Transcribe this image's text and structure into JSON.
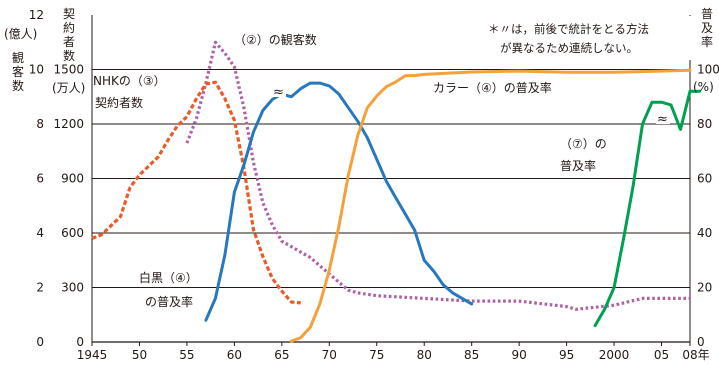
{
  "chart_data": {
    "type": "line",
    "axes": {
      "left_outer": {
        "label_lines": [
          "(億人)",
          "観",
          "客",
          "数"
        ],
        "ticks": [
          0,
          2,
          4,
          6,
          8,
          10,
          12
        ],
        "ylim": [
          0,
          12
        ]
      },
      "left_inner": {
        "label_lines": [
          "契",
          "約",
          "者",
          "数",
          "(万人)"
        ],
        "ticks": [
          0,
          300,
          600,
          900,
          1200,
          1500
        ],
        "ylim": [
          0,
          1800
        ]
      },
      "right": {
        "label_lines": [
          "普",
          "及",
          "率"
        ],
        "unit": "(%)",
        "ticks": [
          0,
          20,
          40,
          60,
          80,
          100
        ],
        "ylim": [
          0,
          120
        ]
      },
      "x": {
        "tick_labels": [
          "1945",
          "50",
          "55",
          "60",
          "65",
          "70",
          "75",
          "80",
          "85",
          "90",
          "95",
          "2000",
          "05",
          "08年"
        ],
        "tick_years": [
          1945,
          1950,
          1955,
          1960,
          1965,
          1970,
          1975,
          1980,
          1985,
          1990,
          1995,
          2000,
          2005,
          2008
        ],
        "xlim": [
          1945,
          2008
        ]
      }
    },
    "grid": true,
    "note": [
      "＊〃は，前後で統計をとる方法",
      "が異なるため連続しない。"
    ],
    "break_mark": "≈",
    "series": [
      {
        "label_lines": [
          "（②）の観客数"
        ],
        "color": "#b05fa6",
        "style": "dotted",
        "axis": "left_outer",
        "points": [
          [
            1955,
            7.3
          ],
          [
            1956,
            8.2
          ],
          [
            1957,
            9.5
          ],
          [
            1958,
            11.0
          ],
          [
            1959,
            10.6
          ],
          [
            1960,
            10.1
          ],
          [
            1961,
            8.6
          ],
          [
            1962,
            6.6
          ],
          [
            1963,
            5.1
          ],
          [
            1964,
            4.3
          ],
          [
            1965,
            3.7
          ],
          [
            1966,
            3.5
          ],
          [
            1967,
            3.3
          ],
          [
            1968,
            3.1
          ],
          [
            1969,
            2.8
          ],
          [
            1970,
            2.5
          ],
          [
            1971,
            2.2
          ],
          [
            1972,
            1.9
          ],
          [
            1973,
            1.8
          ],
          [
            1975,
            1.7
          ],
          [
            1980,
            1.6
          ],
          [
            1985,
            1.5
          ],
          [
            1990,
            1.5
          ],
          [
            1995,
            1.3
          ],
          [
            1996,
            1.2
          ],
          [
            2000,
            1.35
          ],
          [
            2003,
            1.6
          ],
          [
            2005,
            1.6
          ],
          [
            2008,
            1.6
          ]
        ]
      },
      {
        "label_lines": [
          "NHKの（③）",
          "契約者数"
        ],
        "color": "#ea5b2a",
        "style": "dashed",
        "axis": "left_inner",
        "points": [
          [
            1945,
            570
          ],
          [
            1946,
            590
          ],
          [
            1948,
            690
          ],
          [
            1949,
            850
          ],
          [
            1950,
            920
          ],
          [
            1951,
            970
          ],
          [
            1952,
            1020
          ],
          [
            1953,
            1110
          ],
          [
            1954,
            1190
          ],
          [
            1955,
            1240
          ],
          [
            1956,
            1340
          ],
          [
            1957,
            1420
          ],
          [
            1958,
            1430
          ],
          [
            1959,
            1340
          ],
          [
            1960,
            1220
          ],
          [
            1961,
            960
          ],
          [
            1962,
            620
          ],
          [
            1963,
            470
          ],
          [
            1964,
            350
          ],
          [
            1965,
            280
          ],
          [
            1966,
            220
          ],
          [
            1967,
            215
          ]
        ]
      },
      {
        "label_lines": [
          "白黒（④）",
          "の普及率"
        ],
        "color": "#2878be",
        "style": "solid",
        "axis": "right",
        "points": [
          [
            1957,
            8
          ],
          [
            1958,
            16
          ],
          [
            1959,
            32
          ],
          [
            1960,
            55
          ],
          [
            1961,
            65
          ],
          [
            1962,
            77
          ],
          [
            1963,
            85
          ],
          [
            1964,
            89
          ],
          [
            1965,
            91
          ],
          [
            1966,
            90
          ],
          [
            1967,
            93
          ],
          [
            1968,
            95
          ],
          [
            1969,
            95
          ],
          [
            1970,
            94
          ],
          [
            1971,
            91
          ],
          [
            1972,
            86
          ],
          [
            1973,
            81
          ],
          [
            1974,
            75
          ],
          [
            1975,
            67
          ],
          [
            1976,
            59
          ],
          [
            1977,
            53
          ],
          [
            1978,
            47
          ],
          [
            1979,
            41
          ],
          [
            1980,
            30
          ],
          [
            1981,
            26
          ],
          [
            1982,
            21
          ],
          [
            1983,
            18
          ],
          [
            1984,
            16
          ],
          [
            1985,
            14
          ]
        ]
      },
      {
        "label_lines": [
          "カラー（④）の普及率"
        ],
        "color": "#f4a13b",
        "style": "solid",
        "axis": "right",
        "points": [
          [
            1966,
            0.3
          ],
          [
            1967,
            1.6
          ],
          [
            1968,
            5.4
          ],
          [
            1969,
            13.9
          ],
          [
            1970,
            26.3
          ],
          [
            1971,
            42.3
          ],
          [
            1972,
            61.1
          ],
          [
            1973,
            75.8
          ],
          [
            1974,
            85.9
          ],
          [
            1975,
            90.3
          ],
          [
            1976,
            93.7
          ],
          [
            1977,
            95.4
          ],
          [
            1978,
            97.7
          ],
          [
            1979,
            97.8
          ],
          [
            1980,
            98.2
          ],
          [
            1985,
            99.1
          ],
          [
            1990,
            99.4
          ],
          [
            1995,
            99.0
          ],
          [
            2000,
            99.0
          ],
          [
            2005,
            99.4
          ],
          [
            2008,
            99.7
          ]
        ]
      },
      {
        "label_lines": [
          "（⑦）の",
          "普及率"
        ],
        "color": "#00a051",
        "style": "solid",
        "axis": "right",
        "points": [
          [
            1998,
            6
          ],
          [
            1999,
            12
          ],
          [
            2000,
            20
          ],
          [
            2001,
            38
          ],
          [
            2002,
            57
          ],
          [
            2003,
            80
          ],
          [
            2004,
            88
          ],
          [
            2005,
            88
          ],
          [
            2006,
            87
          ],
          [
            2007,
            78
          ],
          [
            2008,
            92
          ],
          [
            2009,
            92
          ]
        ]
      }
    ]
  }
}
